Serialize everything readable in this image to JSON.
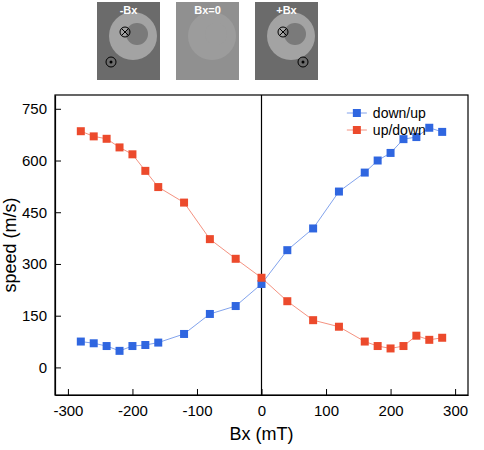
{
  "chart_data": {
    "type": "line",
    "annotations": [
      "-Bx",
      "Bx=0",
      "+Bx"
    ],
    "x_label": "Bx (mT)",
    "y_label": "speed (m/s)",
    "x": [
      -280,
      -260,
      -240,
      -220,
      -200,
      -180,
      -160,
      -120,
      -80,
      -40,
      0,
      40,
      80,
      120,
      160,
      180,
      200,
      220,
      240,
      260,
      280
    ],
    "series": [
      {
        "name": "down/up",
        "color": "#2f66e0",
        "marker": "square",
        "line_style": "solid",
        "values": [
          75,
          70,
          62,
          48,
          62,
          65,
          72,
          97,
          155,
          178,
          242,
          340,
          403,
          510,
          565,
          600,
          622,
          662,
          668,
          695,
          683
        ]
      },
      {
        "name": "up/down",
        "color": "#ec4a2c",
        "marker": "square",
        "line_style": "solid",
        "values": [
          685,
          670,
          663,
          638,
          618,
          570,
          523,
          478,
          372,
          315,
          260,
          192,
          137,
          118,
          75,
          62,
          55,
          62,
          92,
          80,
          86
        ]
      }
    ],
    "xlim": [
      -320,
      320
    ],
    "xticks": [
      -300,
      -200,
      -100,
      0,
      100,
      200,
      300
    ],
    "ylim": [
      -80,
      790
    ],
    "yticks": [
      0,
      150,
      300,
      450,
      600,
      750
    ],
    "legend": "upper right",
    "grid": false
  }
}
